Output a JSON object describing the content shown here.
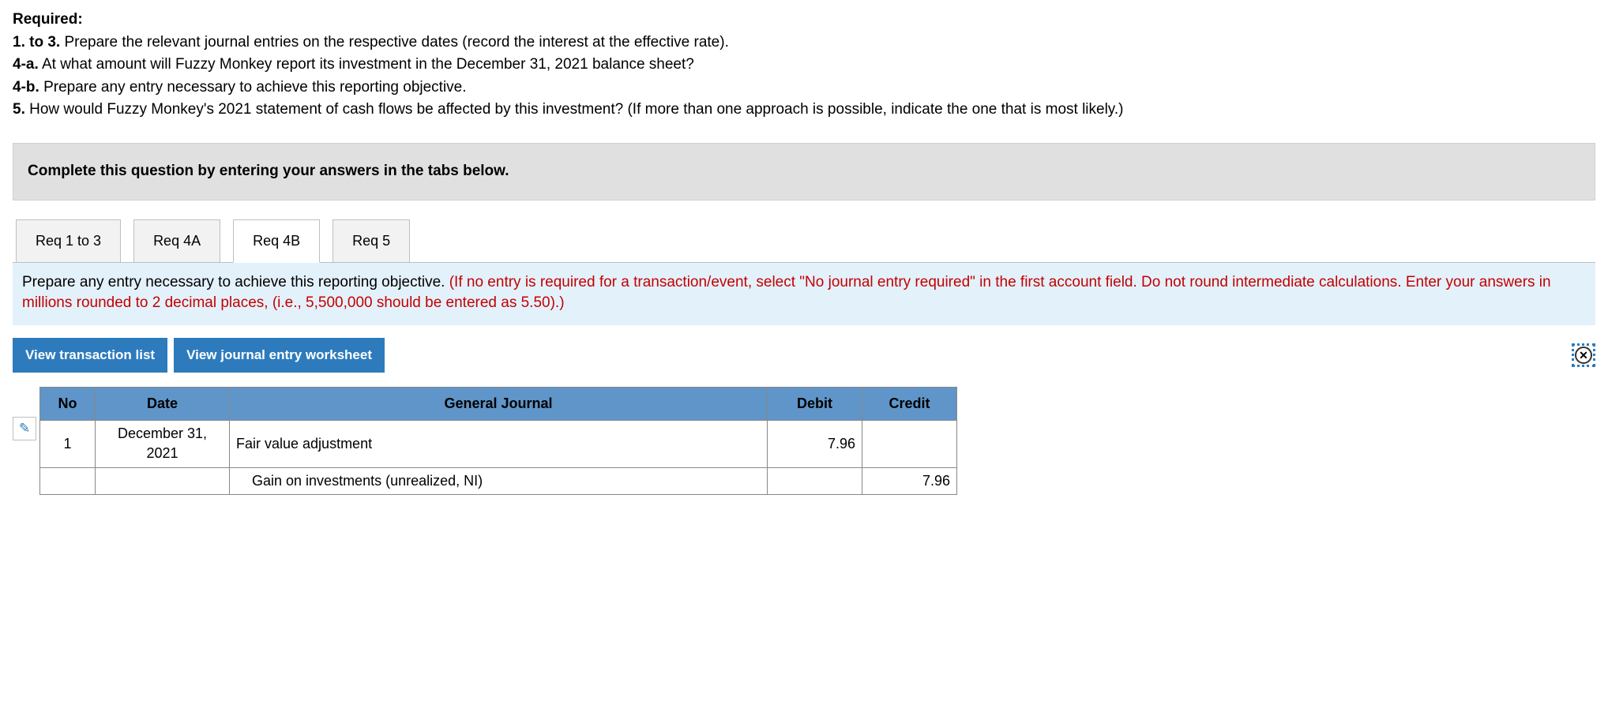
{
  "required": {
    "heading": "Required:",
    "items": [
      {
        "num": "1. to 3.",
        "text": "Prepare the relevant journal entries on the respective dates (record the interest at the effective rate)."
      },
      {
        "num": "4-a.",
        "text": "At what amount will Fuzzy Monkey report its investment in the December 31, 2021 balance sheet?"
      },
      {
        "num": "4-b.",
        "text": "Prepare any entry necessary to achieve this reporting objective."
      },
      {
        "num": "5.",
        "text": "How would Fuzzy Monkey's 2021 statement of cash flows be affected by this investment? (If more than one approach is possible, indicate the one that is most likely.)"
      }
    ]
  },
  "directions": "Complete this question by entering your answers in the tabs below.",
  "tabs": {
    "items": [
      {
        "label": "Req 1 to 3",
        "active": false
      },
      {
        "label": "Req 4A",
        "active": false
      },
      {
        "label": "Req 4B",
        "active": true
      },
      {
        "label": "Req 5",
        "active": false
      }
    ]
  },
  "tab_instructions": {
    "black": "Prepare any entry necessary to achieve this reporting objective. ",
    "red": "(If no entry is required for a transaction/event, select \"No journal entry required\" in the first account field. Do not round intermediate calculations. Enter your answers in millions rounded to 2 decimal places, (i.e., 5,500,000 should be entered as 5.50).)"
  },
  "buttons": {
    "view_txn_list": "View transaction list",
    "view_worksheet": "View journal entry worksheet"
  },
  "journal": {
    "headers": {
      "no": "No",
      "date": "Date",
      "gj": "General Journal",
      "debit": "Debit",
      "credit": "Credit"
    },
    "rows": [
      {
        "no": "1",
        "date": "December 31, 2021",
        "account": "Fair value adjustment",
        "debit": "7.96",
        "credit": "",
        "indent": false
      },
      {
        "no": "",
        "date": "",
        "account": "Gain on investments (unrealized, NI)",
        "debit": "",
        "credit": "7.96",
        "indent": true
      }
    ]
  },
  "colors": {
    "tab_instructions_bg": "#e3f1fb",
    "red_text": "#c40000",
    "button_bg": "#2d7bbd",
    "table_header_bg": "#5f95c9",
    "directions_bg": "#e0e0e0"
  }
}
